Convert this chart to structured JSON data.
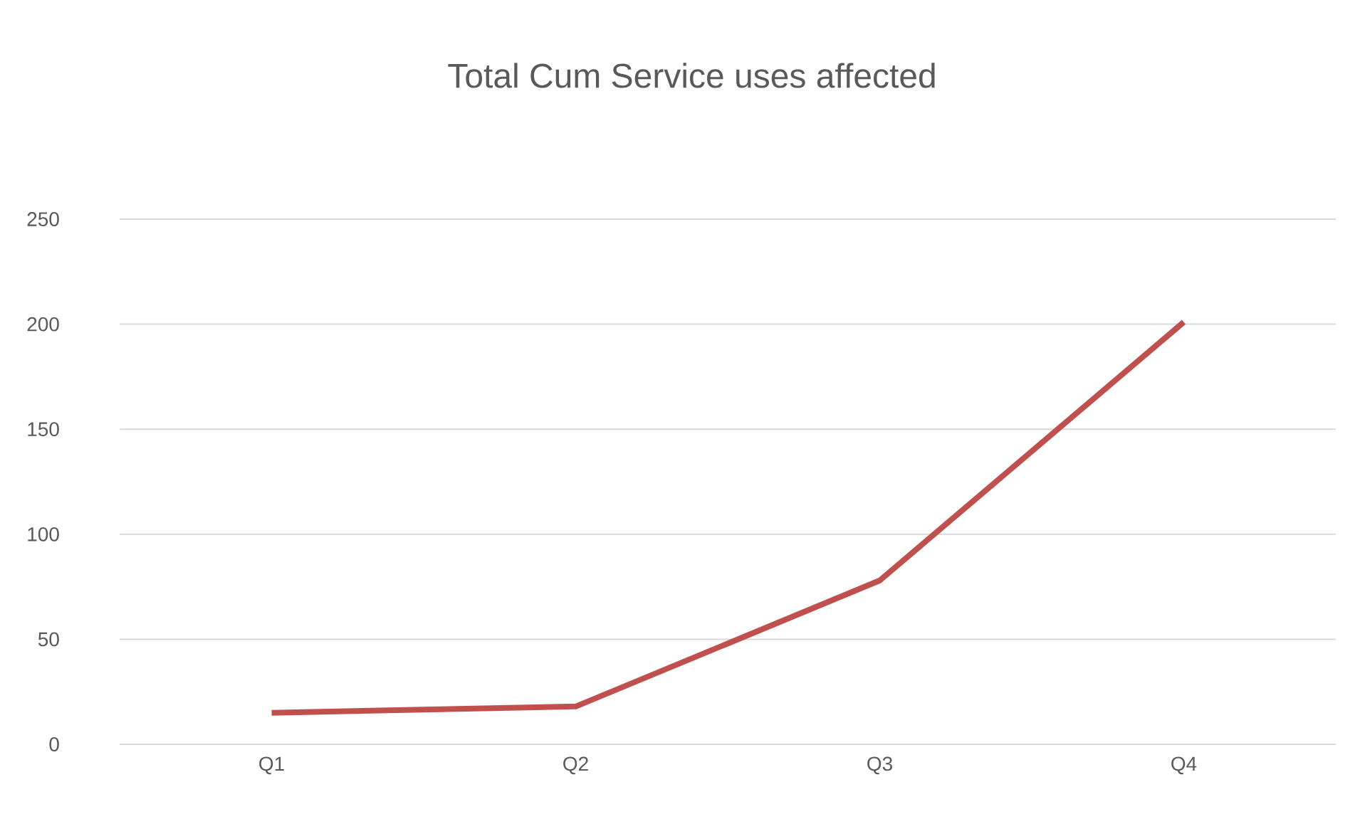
{
  "chart_data": {
    "type": "line",
    "title": "Total Cum Service uses affected",
    "categories": [
      "Q1",
      "Q2",
      "Q3",
      "Q4"
    ],
    "series": [
      {
        "color": "#c0504d",
        "values": [
          15,
          18,
          78,
          201
        ]
      }
    ],
    "ylim": [
      0,
      250
    ],
    "yticks": [
      0,
      50,
      100,
      150,
      200,
      250
    ],
    "grid": "y"
  }
}
